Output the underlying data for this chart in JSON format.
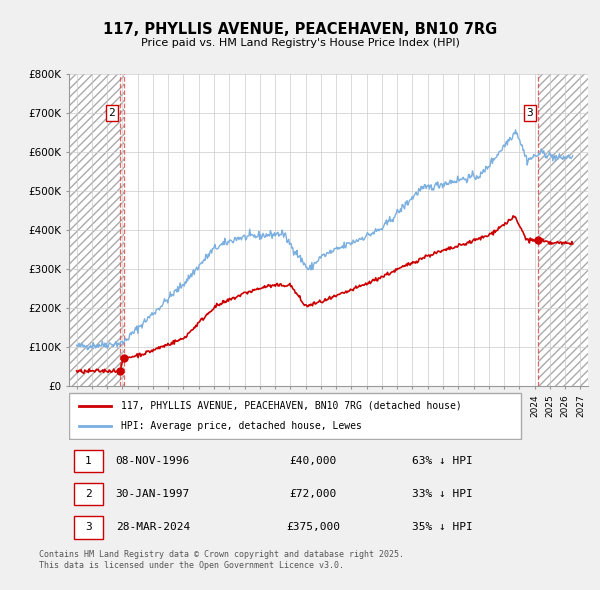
{
  "title": "117, PHYLLIS AVENUE, PEACEHAVEN, BN10 7RG",
  "subtitle": "Price paid vs. HM Land Registry's House Price Index (HPI)",
  "bg_color": "#f0f0f0",
  "plot_bg_color": "#ffffff",
  "xmin": 1993.5,
  "xmax": 2027.5,
  "ymin": 0,
  "ymax": 800000,
  "yticks": [
    0,
    100000,
    200000,
    300000,
    400000,
    500000,
    600000,
    700000,
    800000
  ],
  "ytick_labels": [
    "£0",
    "£100K",
    "£200K",
    "£300K",
    "£400K",
    "£500K",
    "£600K",
    "£700K",
    "£800K"
  ],
  "red_color": "#cc0000",
  "blue_color": "#7aafe0",
  "legend_label_red": "117, PHYLLIS AVENUE, PEACEHAVEN, BN10 7RG (detached house)",
  "legend_label_blue": "HPI: Average price, detached house, Lewes",
  "sale_points": [
    {
      "num": 1,
      "date_label": "08-NOV-1996",
      "price": 40000,
      "price_label": "£40,000",
      "pct_label": "63% ↓ HPI",
      "x": 1996.86
    },
    {
      "num": 2,
      "date_label": "30-JAN-1997",
      "price": 72000,
      "price_label": "£72,000",
      "pct_label": "33% ↓ HPI",
      "x": 1997.08
    },
    {
      "num": 3,
      "date_label": "28-MAR-2024",
      "price": 375000,
      "price_label": "£375,000",
      "pct_label": "35% ↓ HPI",
      "x": 2024.24
    }
  ],
  "vline_color": "#dd4444",
  "footer_text": "Contains HM Land Registry data © Crown copyright and database right 2025.\nThis data is licensed under the Open Government Licence v3.0.",
  "grid_color": "#cccccc",
  "hatch_left_end": 1997.08,
  "hatch_right_start": 2024.24
}
